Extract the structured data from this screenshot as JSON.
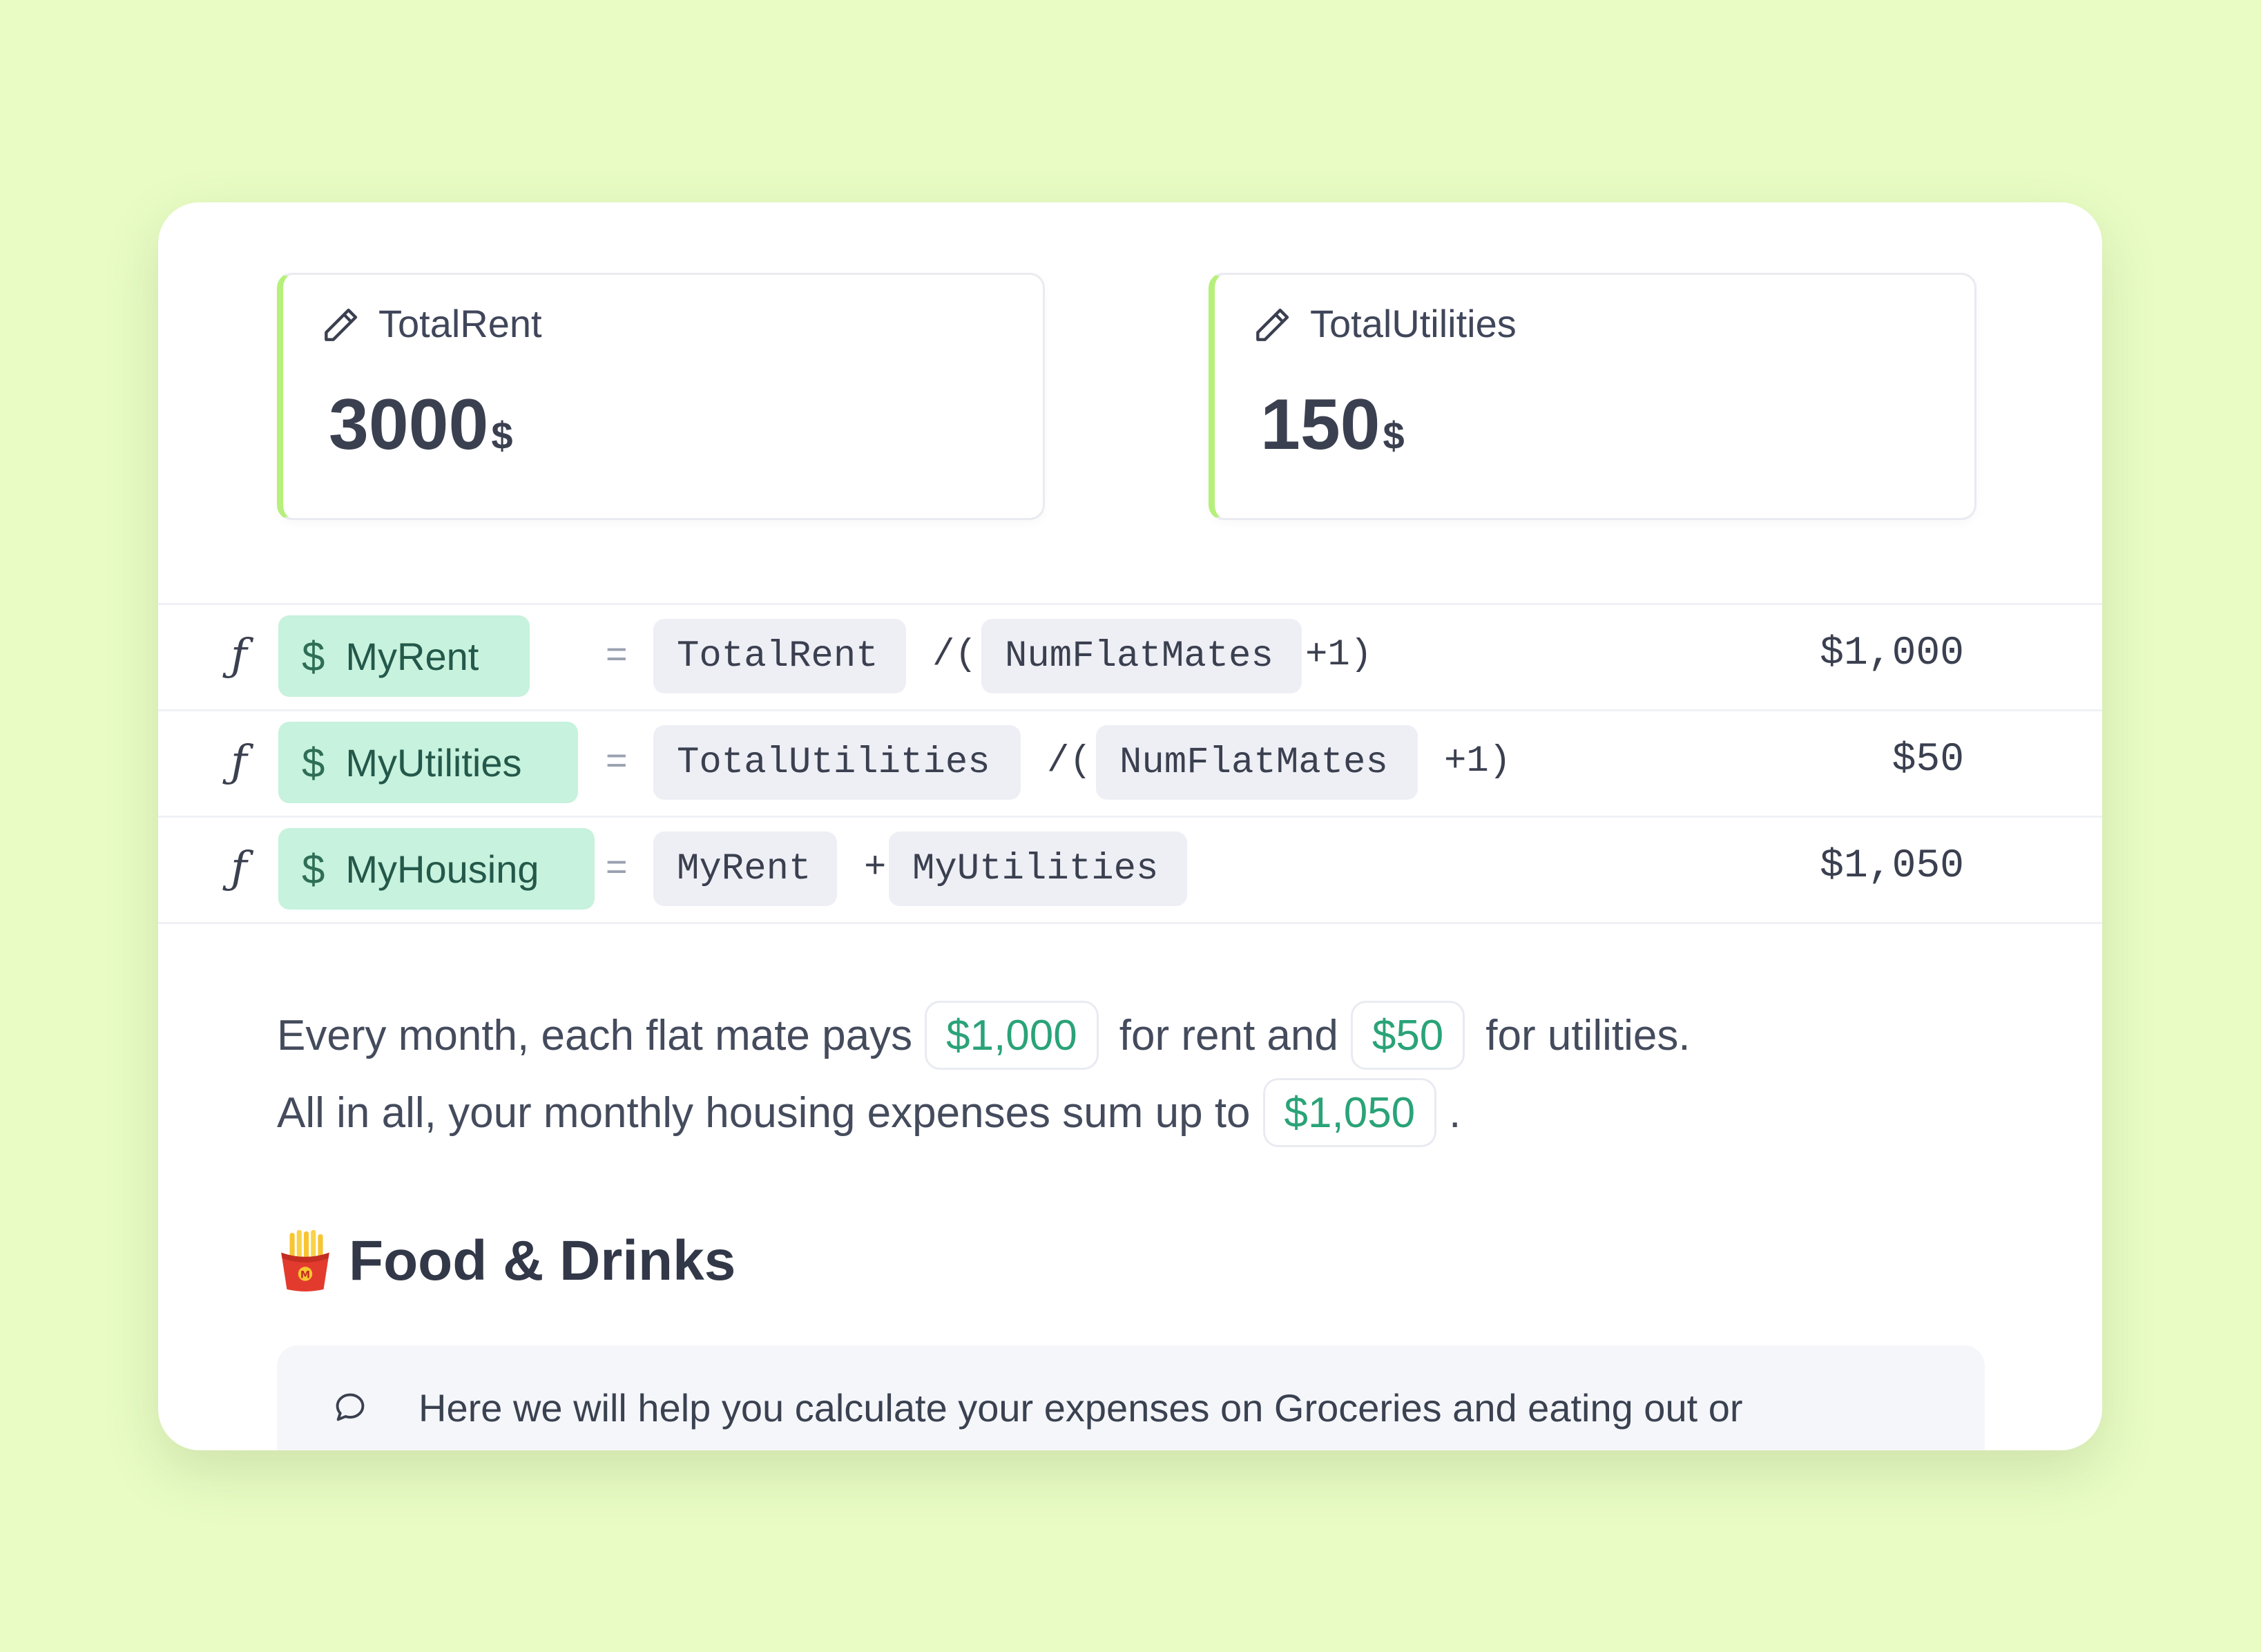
{
  "inputs": [
    {
      "label": "TotalRent",
      "value": "3000",
      "unit": "$"
    },
    {
      "label": "TotalUtilities",
      "value": "150",
      "unit": "$"
    }
  ],
  "formulas": [
    {
      "fx": "ƒ",
      "dollar": "$",
      "name": "MyRent",
      "eq": "=",
      "tokens": [
        "TotalRent",
        "NumFlatMates"
      ],
      "ops": [
        "/(",
        "+1)"
      ],
      "result": "$1,000"
    },
    {
      "fx": "ƒ",
      "dollar": "$",
      "name": "MyUtilities",
      "eq": "=",
      "tokens": [
        "TotalUtilities",
        "NumFlatMates"
      ],
      "ops": [
        "/(",
        "+1)"
      ],
      "result": "$50"
    },
    {
      "fx": "ƒ",
      "dollar": "$",
      "name": "MyHousing",
      "eq": "=",
      "tokens": [
        "MyRent",
        "MyUtilities"
      ],
      "ops": [
        "+"
      ],
      "result": "$1,050"
    }
  ],
  "paragraph": {
    "line1_a": "Every month, each flat mate pays",
    "line1_v1": "$1,000",
    "line1_b": "for rent and",
    "line1_v2": "$50",
    "line1_c": "for utilities.",
    "line2_a": "All in all, your monthly housing expenses sum up to",
    "line2_v": "$1,050",
    "line2_b": "."
  },
  "section": {
    "emoji": "fries-icon",
    "title": "Food & Drinks"
  },
  "callout": {
    "icon": "speech-bubble-icon",
    "text": "Here we will help you calculate your expenses on Groceries and eating out or"
  },
  "colors": {
    "background": "#e8fcc4",
    "accent_green": "#b6f07a",
    "variable_chip": "#c7f2dd",
    "value_green": "#2aa378"
  }
}
